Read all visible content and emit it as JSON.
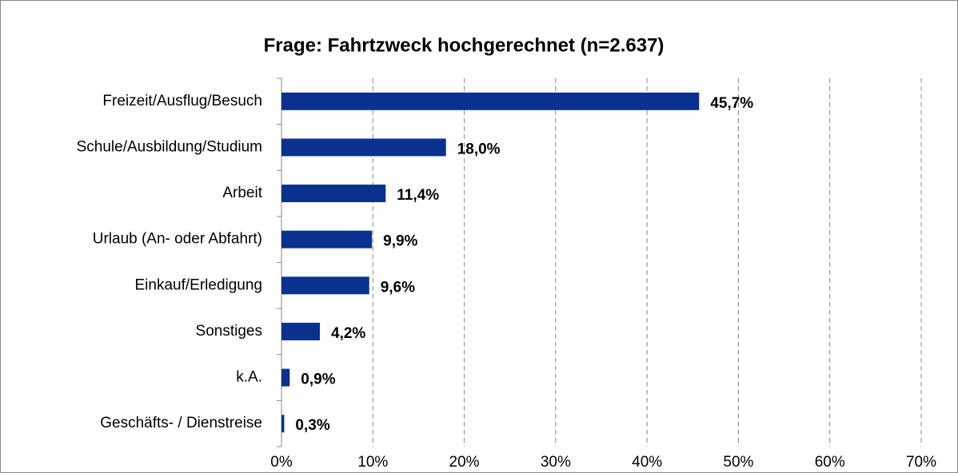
{
  "chart_data": {
    "type": "bar",
    "orientation": "horizontal",
    "title": "Frage: Fahrtzweck hochgerechnet (n=2.637)",
    "categories": [
      "Freizeit/Ausflug/Besuch",
      "Schule/Ausbildung/Studium",
      "Arbeit",
      "Urlaub (An- oder Abfahrt)",
      "Einkauf/Erledigung",
      "Sonstiges",
      "k.A.",
      "Geschäfts- / Dienstreise"
    ],
    "values": [
      45.7,
      18.0,
      11.4,
      9.9,
      9.6,
      4.2,
      0.9,
      0.3
    ],
    "value_labels": [
      "45,7%",
      "18,0%",
      "11,4%",
      "9,9%",
      "9,6%",
      "4,2%",
      "0,9%",
      "0,3%"
    ],
    "color": "#0b318f",
    "xlim": [
      0,
      70
    ],
    "xticks": [
      {
        "value": 0,
        "label": "0%"
      },
      {
        "value": 10,
        "label": "10%"
      },
      {
        "value": 20,
        "label": "20%"
      },
      {
        "value": 30,
        "label": "30%"
      },
      {
        "value": 40,
        "label": "40%"
      },
      {
        "value": 50,
        "label": "50%"
      },
      {
        "value": 60,
        "label": "60%"
      },
      {
        "value": 70,
        "label": "70%"
      }
    ],
    "grid": true
  }
}
